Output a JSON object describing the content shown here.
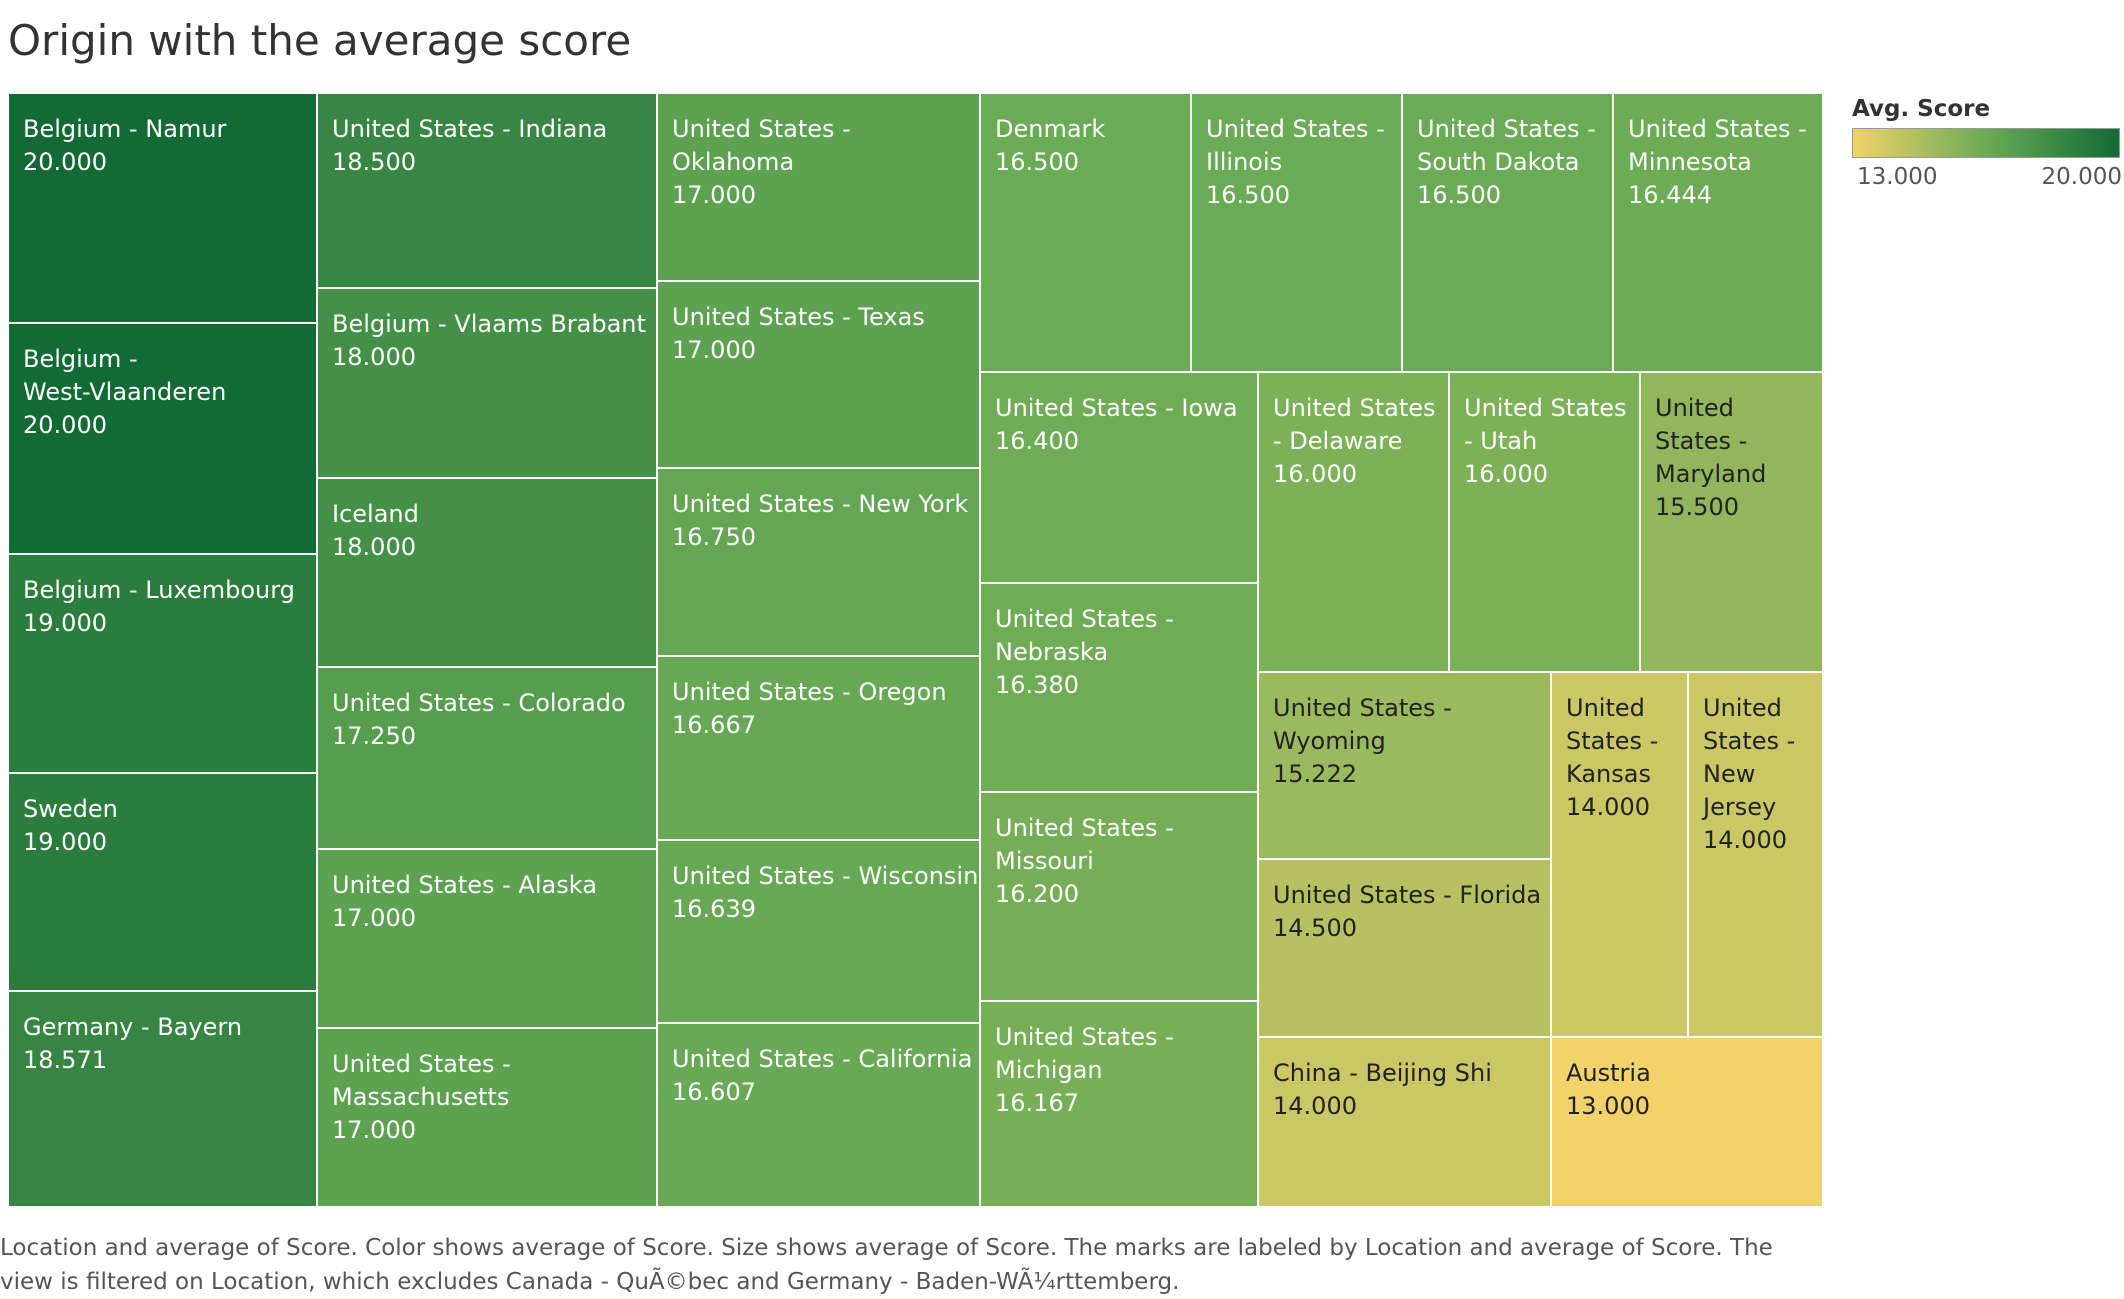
{
  "title": "Origin with the average score",
  "legend": {
    "title": "Avg. Score",
    "min_label": "13.000",
    "max_label": "20.000",
    "color_low": "#f1d26b",
    "color_mid": "#6aab55",
    "color_high": "#126b35"
  },
  "caption": "Location and average of Score.  Color shows average of Score.  Size shows average of Score.  The marks are labeled by Location and average of Score. The view is filtered on Location, which excludes Canada - QuÃ©bec and Germany - Baden-WÃ¼rttemberg.",
  "chart_data": {
    "type": "treemap",
    "measure": "Avg. Score",
    "color_range": [
      13,
      20
    ],
    "items": [
      {
        "location": "Belgium - Namur",
        "score": 20.0,
        "label": "Belgium - Namur",
        "value_label": "20.000"
      },
      {
        "location": "Belgium - West-Vlaanderen",
        "score": 20.0,
        "label": "Belgium -\nWest-Vlaanderen",
        "value_label": "20.000"
      },
      {
        "location": "Belgium - Luxembourg",
        "score": 19.0,
        "label": "Belgium - Luxembourg",
        "value_label": "19.000"
      },
      {
        "location": "Sweden",
        "score": 19.0,
        "label": "Sweden",
        "value_label": "19.000"
      },
      {
        "location": "Germany - Bayern",
        "score": 18.571,
        "label": "Germany - Bayern",
        "value_label": "18.571"
      },
      {
        "location": "United States - Indiana",
        "score": 18.5,
        "label": "United States - Indiana",
        "value_label": "18.500"
      },
      {
        "location": "Belgium - Vlaams Brabant",
        "score": 18.0,
        "label": "Belgium - Vlaams Brabant",
        "value_label": "18.000"
      },
      {
        "location": "Iceland",
        "score": 18.0,
        "label": "Iceland",
        "value_label": "18.000"
      },
      {
        "location": "United States - Colorado",
        "score": 17.25,
        "label": "United States - Colorado",
        "value_label": "17.250"
      },
      {
        "location": "United States - Alaska",
        "score": 17.0,
        "label": "United States - Alaska",
        "value_label": "17.000"
      },
      {
        "location": "United States - Massachusetts",
        "score": 17.0,
        "label": "United States -\nMassachusetts",
        "value_label": "17.000"
      },
      {
        "location": "United States - Oklahoma",
        "score": 17.0,
        "label": "United States - Oklahoma",
        "value_label": "17.000"
      },
      {
        "location": "United States - Texas",
        "score": 17.0,
        "label": "United States - Texas",
        "value_label": "17.000"
      },
      {
        "location": "United States - New York",
        "score": 16.75,
        "label": "United States - New York",
        "value_label": "16.750"
      },
      {
        "location": "United States - Oregon",
        "score": 16.667,
        "label": "United States - Oregon",
        "value_label": "16.667"
      },
      {
        "location": "United States - Wisconsin",
        "score": 16.639,
        "label": "United States - Wisconsin",
        "value_label": "16.639"
      },
      {
        "location": "United States - California",
        "score": 16.607,
        "label": "United States - California",
        "value_label": "16.607"
      },
      {
        "location": "Denmark",
        "score": 16.5,
        "label": "Denmark",
        "value_label": "16.500"
      },
      {
        "location": "United States - Illinois",
        "score": 16.5,
        "label": "United States -\nIllinois",
        "value_label": "16.500"
      },
      {
        "location": "United States - South Dakota",
        "score": 16.5,
        "label": "United States -\nSouth Dakota",
        "value_label": "16.500"
      },
      {
        "location": "United States - Minnesota",
        "score": 16.444,
        "label": "United States -\nMinnesota",
        "value_label": "16.444"
      },
      {
        "location": "United States - Iowa",
        "score": 16.4,
        "label": "United States - Iowa",
        "value_label": "16.400"
      },
      {
        "location": "United States - Nebraska",
        "score": 16.38,
        "label": "United States -\nNebraska",
        "value_label": "16.380"
      },
      {
        "location": "United States - Missouri",
        "score": 16.2,
        "label": "United States -\nMissouri",
        "value_label": "16.200"
      },
      {
        "location": "United States - Michigan",
        "score": 16.167,
        "label": "United States -\nMichigan",
        "value_label": "16.167"
      },
      {
        "location": "United States - Delaware",
        "score": 16.0,
        "label": "United States\n- Delaware",
        "value_label": "16.000"
      },
      {
        "location": "United States - Utah",
        "score": 16.0,
        "label": "United States\n- Utah",
        "value_label": "16.000"
      },
      {
        "location": "United States - Maryland",
        "score": 15.5,
        "label": "United\nStates -\nMaryland",
        "value_label": "15.500"
      },
      {
        "location": "United States - Wyoming",
        "score": 15.222,
        "label": "United States -\nWyoming",
        "value_label": "15.222"
      },
      {
        "location": "United States - Florida",
        "score": 14.5,
        "label": "United States - Florida",
        "value_label": "14.500"
      },
      {
        "location": "China - Beijing Shi",
        "score": 14.0,
        "label": "China - Beijing Shi",
        "value_label": "14.000"
      },
      {
        "location": "United States - Kansas",
        "score": 14.0,
        "label": "United\nStates -\nKansas",
        "value_label": "14.000"
      },
      {
        "location": "United States - New Jersey",
        "score": 14.0,
        "label": "United\nStates -\nNew\nJersey",
        "value_label": "14.000"
      },
      {
        "location": "Austria",
        "score": 13.0,
        "label": "Austria",
        "value_label": "13.000"
      }
    ]
  }
}
